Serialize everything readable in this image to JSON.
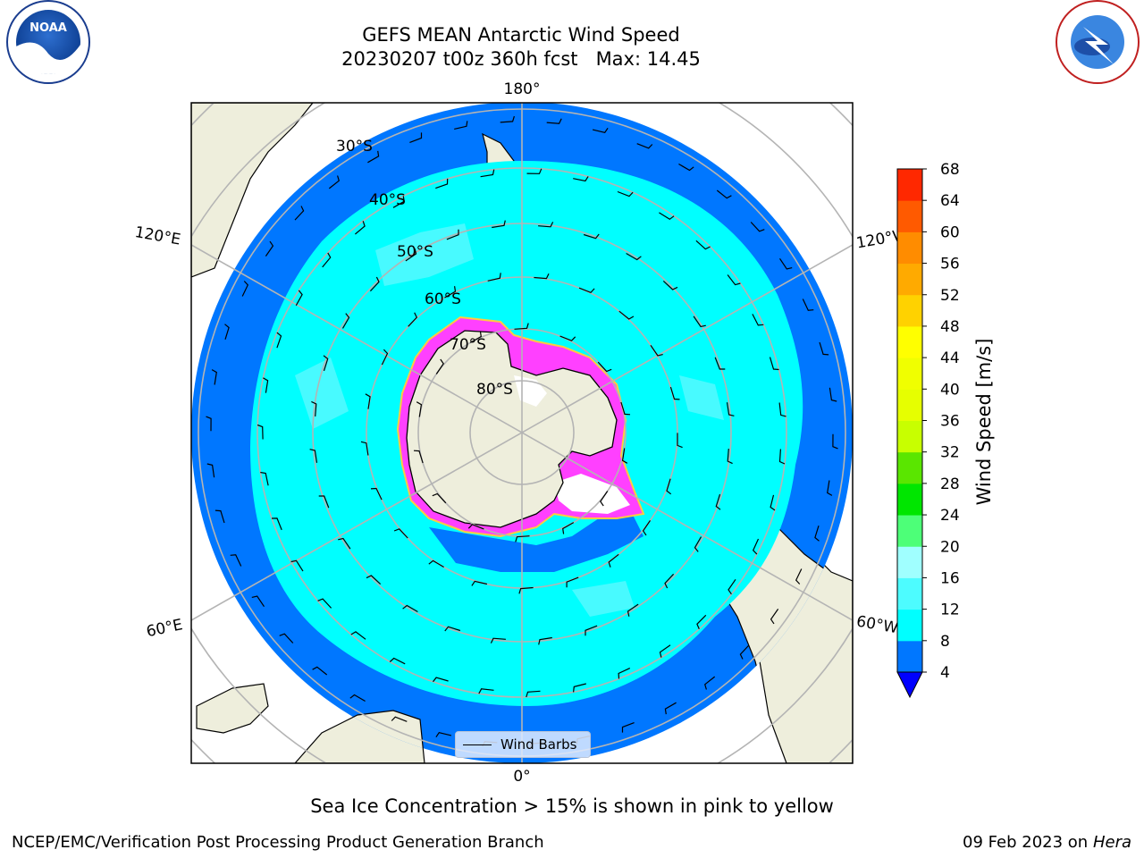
{
  "title": {
    "line1": "GEFS MEAN Antarctic Wind Speed",
    "line2": "20230207 t00z 360h fcst   Max: 14.45"
  },
  "map": {
    "projection": "south-polar-stereographic",
    "longitude_labels": {
      "top": "180°",
      "bottom": "0°",
      "upper_left": "120°E",
      "lower_left": "60°E",
      "upper_right": "120°W",
      "lower_right": "60°W"
    },
    "latitude_labels": [
      "30°S",
      "40°S",
      "50°S",
      "60°S",
      "70°S",
      "80°S"
    ],
    "legend": {
      "label": "Wind Barbs"
    }
  },
  "colorbar": {
    "label": "Wind Speed [m/s]",
    "ticks": [
      4,
      8,
      12,
      16,
      20,
      24,
      28,
      32,
      36,
      40,
      44,
      48,
      52,
      56,
      60,
      64,
      68
    ],
    "colors": [
      "#0077ff",
      "#00ffff",
      "#4dfcff",
      "#a0ffff",
      "#4dff78",
      "#00e600",
      "#5ae600",
      "#c8ff00",
      "#e6ff00",
      "#f0ff00",
      "#ffff00",
      "#ffd200",
      "#ffaa00",
      "#ff8c00",
      "#ff5a00",
      "#ff2800"
    ],
    "extend_color": "#0000ff"
  },
  "caption": "Sea Ice Concentration > 15% is shown in pink to yellow",
  "footer": {
    "left": "NCEP/EMC/Verification Post Processing Product Generation Branch",
    "date": "09 Feb 2023 on",
    "machine": "Hera"
  }
}
